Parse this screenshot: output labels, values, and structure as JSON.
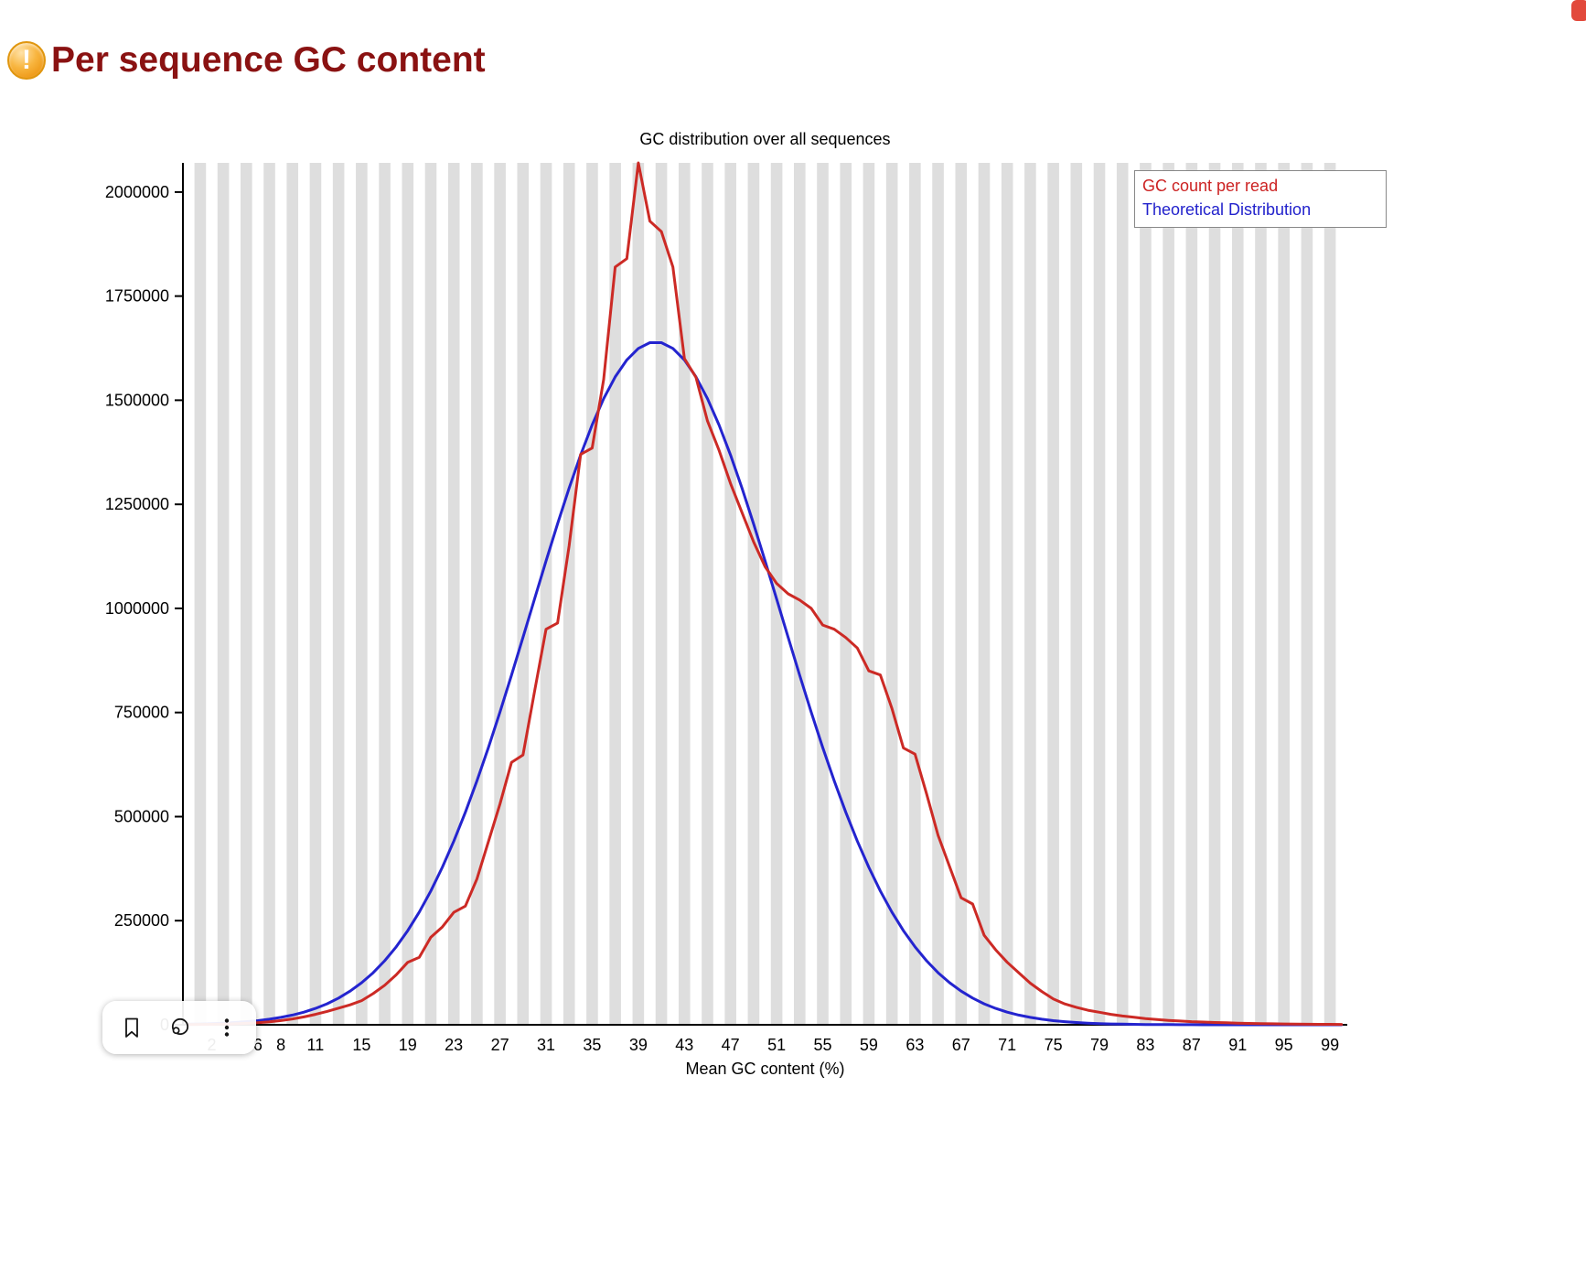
{
  "header": {
    "title": "Per sequence GC content",
    "status": "warning",
    "warning_glyph": "!"
  },
  "overlay_toolbar": {
    "icons": [
      "bookmark-icon",
      "lens-icon",
      "more-vertical-icon"
    ]
  },
  "corner_fragment_color": "#e2493c",
  "chart_data": {
    "type": "line",
    "title": "GC distribution over all sequences",
    "xlabel": "Mean GC content (%)",
    "ylabel": "",
    "xlim": [
      0,
      100
    ],
    "ylim": [
      0,
      2070000
    ],
    "grid": "vertical-stripes",
    "stripe_colors": [
      "#ffffff",
      "#dedede"
    ],
    "y_ticks": [
      0,
      250000,
      500000,
      750000,
      1000000,
      1250000,
      1500000,
      1750000,
      2000000
    ],
    "x_tick_labels": [
      2,
      6,
      8,
      11,
      15,
      19,
      23,
      27,
      31,
      35,
      39,
      43,
      47,
      51,
      55,
      59,
      63,
      67,
      71,
      75,
      79,
      83,
      87,
      91,
      95,
      99
    ],
    "legend": {
      "position": "top-right",
      "entries": [
        {
          "label": "GC count per read",
          "color": "#cc2222"
        },
        {
          "label": "Theoretical Distribution",
          "color": "#2222cc"
        }
      ]
    },
    "x_start": 0,
    "x_step": 1,
    "series": [
      {
        "name": "GC count per read",
        "color": "#cc2a25",
        "values": [
          500,
          800,
          1200,
          1800,
          2500,
          3500,
          5000,
          7000,
          10000,
          14000,
          19000,
          25000,
          32000,
          40000,
          48000,
          58000,
          75000,
          95000,
          120000,
          150000,
          162000,
          210000,
          235000,
          270000,
          285000,
          350000,
          440000,
          530000,
          630000,
          648000,
          800000,
          950000,
          965000,
          1150000,
          1370000,
          1385000,
          1550000,
          1820000,
          1840000,
          2070000,
          1930000,
          1905000,
          1820000,
          1600000,
          1555000,
          1450000,
          1380000,
          1300000,
          1230000,
          1160000,
          1100000,
          1060000,
          1035000,
          1020000,
          1000000,
          960000,
          950000,
          930000,
          905000,
          850000,
          840000,
          760000,
          665000,
          650000,
          555000,
          455000,
          380000,
          305000,
          290000,
          215000,
          180000,
          150000,
          125000,
          100000,
          80000,
          62000,
          50000,
          42000,
          35000,
          30000,
          25000,
          21000,
          18000,
          15000,
          12500,
          10500,
          9000,
          7500,
          6500,
          5500,
          4800,
          4000,
          3400,
          2800,
          2400,
          2000,
          1700,
          1400,
          1200,
          1000,
          800
        ]
      },
      {
        "name": "Theoretical Distribution",
        "color": "#2424cf",
        "values": [
          1450,
          2040,
          2850,
          3950,
          5420,
          7390,
          9970,
          13350,
          17700,
          23340,
          30420,
          39350,
          50410,
          64080,
          80860,
          101040,
          125100,
          153750,
          187200,
          226050,
          270650,
          321340,
          378150,
          441210,
          510500,
          585540,
          665900,
          750800,
          839380,
          930360,
          1022380,
          1113850,
          1203200,
          1288660,
          1368320,
          1440560,
          1503650,
          1556100,
          1596650,
          1624260,
          1638240,
          1638240,
          1624260,
          1596650,
          1556100,
          1503650,
          1440560,
          1368320,
          1288660,
          1203200,
          1113850,
          1022380,
          930360,
          839380,
          750800,
          665900,
          585540,
          510500,
          441210,
          378150,
          321340,
          270650,
          226050,
          187200,
          153750,
          125100,
          101040,
          80860,
          64080,
          50410,
          39350,
          30420,
          23340,
          17700,
          13350,
          9970,
          7390,
          5420,
          3950,
          2850,
          2040,
          1450,
          1020,
          710,
          490,
          340,
          230,
          150,
          100,
          66,
          42,
          27,
          17,
          11,
          7,
          4,
          3,
          2,
          1,
          1,
          0
        ]
      }
    ]
  }
}
